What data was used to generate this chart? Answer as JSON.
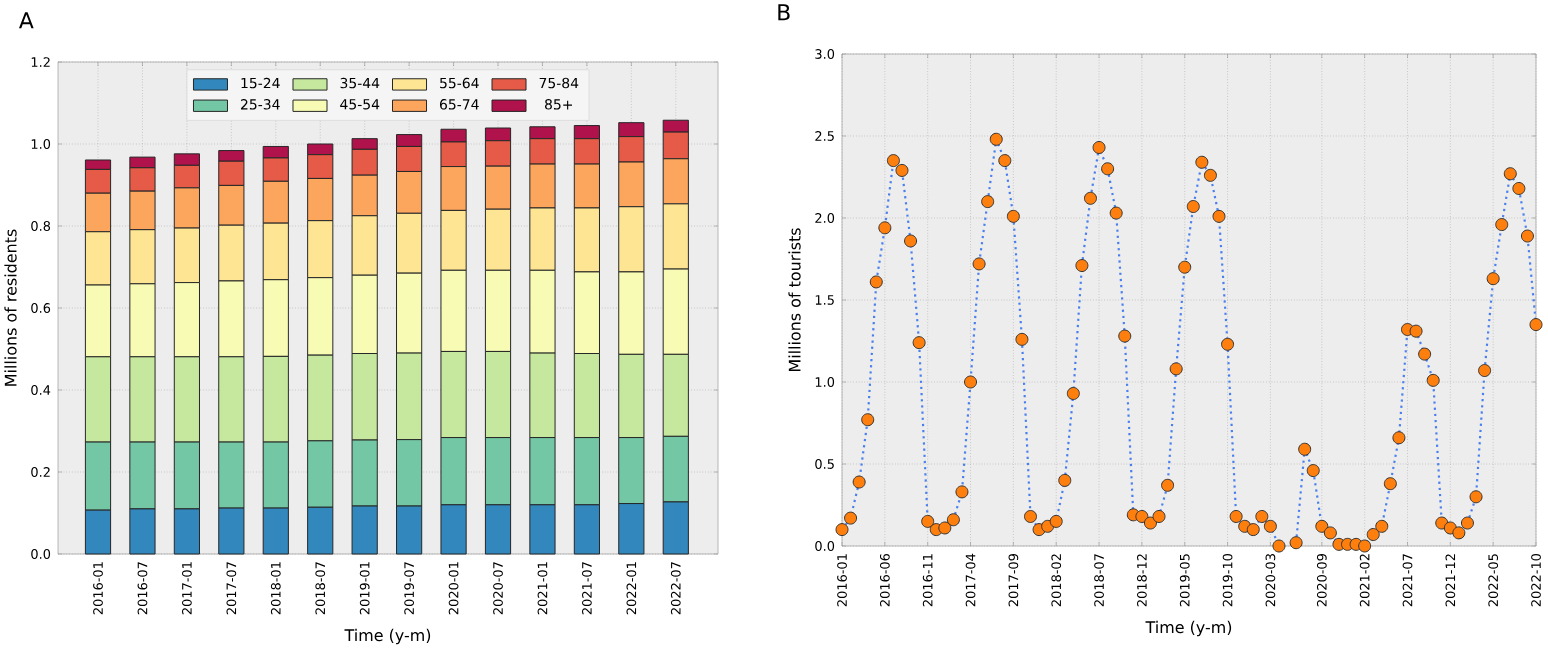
{
  "chart_data": [
    {
      "type": "bar",
      "title": "A",
      "stacked": true,
      "xlabel": "Time (y-m)",
      "ylabel": "Millions of residents",
      "categories": [
        "2016-01",
        "2016-07",
        "2017-01",
        "2017-07",
        "2018-01",
        "2018-07",
        "2019-01",
        "2019-07",
        "2020-01",
        "2020-07",
        "2021-01",
        "2021-07",
        "2022-01",
        "2022-07"
      ],
      "series": [
        {
          "name": "15-24",
          "color": "#3288bd",
          "values": [
            0.107,
            0.11,
            0.11,
            0.112,
            0.112,
            0.114,
            0.117,
            0.117,
            0.12,
            0.12,
            0.12,
            0.12,
            0.123,
            0.127
          ]
        },
        {
          "name": "25-34",
          "color": "#74c7a5",
          "values": [
            0.166,
            0.163,
            0.163,
            0.161,
            0.161,
            0.162,
            0.161,
            0.162,
            0.164,
            0.164,
            0.164,
            0.164,
            0.161,
            0.16
          ]
        },
        {
          "name": "35-44",
          "color": "#c5e89e",
          "values": [
            0.208,
            0.208,
            0.208,
            0.208,
            0.209,
            0.209,
            0.211,
            0.211,
            0.21,
            0.21,
            0.206,
            0.205,
            0.203,
            0.2
          ]
        },
        {
          "name": "45-54",
          "color": "#f7fbb3",
          "values": [
            0.175,
            0.178,
            0.181,
            0.185,
            0.187,
            0.189,
            0.191,
            0.195,
            0.198,
            0.198,
            0.202,
            0.199,
            0.201,
            0.208
          ]
        },
        {
          "name": "55-64",
          "color": "#fee593",
          "values": [
            0.13,
            0.132,
            0.133,
            0.136,
            0.138,
            0.139,
            0.145,
            0.146,
            0.146,
            0.149,
            0.152,
            0.156,
            0.159,
            0.159
          ]
        },
        {
          "name": "65-74",
          "color": "#fca55d",
          "values": [
            0.094,
            0.094,
            0.098,
            0.097,
            0.102,
            0.103,
            0.099,
            0.102,
            0.107,
            0.105,
            0.107,
            0.107,
            0.109,
            0.11
          ]
        },
        {
          "name": "75-84",
          "color": "#e65b48",
          "values": [
            0.058,
            0.057,
            0.055,
            0.059,
            0.057,
            0.058,
            0.063,
            0.061,
            0.06,
            0.062,
            0.062,
            0.062,
            0.062,
            0.065
          ]
        },
        {
          "name": "85+",
          "color": "#b0124b",
          "values": [
            0.023,
            0.026,
            0.028,
            0.026,
            0.028,
            0.026,
            0.026,
            0.029,
            0.031,
            0.031,
            0.029,
            0.032,
            0.034,
            0.029
          ]
        }
      ],
      "ylim": [
        0,
        1.2
      ],
      "yticks": [
        {
          "value": 0,
          "label": "0.0"
        },
        {
          "value": 0.2,
          "label": "0.2"
        },
        {
          "value": 0.4,
          "label": "0.4"
        },
        {
          "value": 0.6,
          "label": "0.6"
        },
        {
          "value": 0.8,
          "label": "0.8"
        },
        {
          "value": 1.0,
          "label": "1.0"
        },
        {
          "value": 1.2,
          "label": "1.2"
        }
      ],
      "grid": true,
      "legend": "top"
    },
    {
      "type": "line",
      "title": "B",
      "xlabel": "Time (y-m)",
      "ylabel": "Millions of tourists",
      "x": [
        "2016-01",
        "2016-02",
        "2016-03",
        "2016-04",
        "2016-05",
        "2016-06",
        "2016-07",
        "2016-08",
        "2016-09",
        "2016-10",
        "2016-11",
        "2016-12",
        "2017-01",
        "2017-02",
        "2017-03",
        "2017-04",
        "2017-05",
        "2017-06",
        "2017-07",
        "2017-08",
        "2017-09",
        "2017-10",
        "2017-11",
        "2017-12",
        "2018-01",
        "2018-02",
        "2018-03",
        "2018-04",
        "2018-05",
        "2018-06",
        "2018-07",
        "2018-08",
        "2018-09",
        "2018-10",
        "2018-11",
        "2018-12",
        "2019-01",
        "2019-02",
        "2019-03",
        "2019-04",
        "2019-05",
        "2019-06",
        "2019-07",
        "2019-08",
        "2019-09",
        "2019-10",
        "2019-11",
        "2019-12",
        "2020-01",
        "2020-02",
        "2020-03",
        "2020-04",
        "2020-05",
        "2020-06",
        "2020-07",
        "2020-08",
        "2020-09",
        "2020-10",
        "2020-11",
        "2020-12",
        "2021-01",
        "2021-02",
        "2021-03",
        "2021-04",
        "2021-05",
        "2021-06",
        "2021-07",
        "2021-08",
        "2021-09",
        "2021-10",
        "2021-11",
        "2021-12",
        "2022-01",
        "2022-02",
        "2022-03",
        "2022-04",
        "2022-05",
        "2022-06",
        "2022-07",
        "2022-08",
        "2022-09",
        "2022-10"
      ],
      "series": [
        {
          "color": "#ff7f0e",
          "values": [
            0.1,
            0.17,
            0.39,
            0.77,
            1.61,
            1.94,
            2.35,
            2.29,
            1.86,
            1.24,
            0.15,
            0.1,
            0.11,
            0.16,
            0.33,
            1.0,
            1.72,
            2.1,
            2.48,
            2.35,
            2.01,
            1.26,
            0.18,
            0.1,
            0.12,
            0.15,
            0.4,
            0.93,
            1.71,
            2.12,
            2.43,
            2.3,
            2.03,
            1.28,
            0.19,
            0.18,
            0.14,
            0.18,
            0.37,
            1.08,
            1.7,
            2.07,
            2.34,
            2.26,
            2.01,
            1.23,
            0.18,
            0.12,
            0.1,
            0.18,
            0.12,
            0.0,
            null,
            0.02,
            0.59,
            0.46,
            0.12,
            0.08,
            0.01,
            0.01,
            0.01,
            0.0,
            0.07,
            0.12,
            0.38,
            0.66,
            1.32,
            1.31,
            1.17,
            1.01,
            0.14,
            0.11,
            0.08,
            0.14,
            0.3,
            1.07,
            1.63,
            1.96,
            2.27,
            2.18,
            1.89,
            1.35
          ]
        }
      ],
      "xlim": [
        "2016-01",
        "2022-10"
      ],
      "xticks": [
        "2016-01",
        "2016-06",
        "2016-11",
        "2017-04",
        "2017-09",
        "2018-02",
        "2018-07",
        "2018-12",
        "2019-05",
        "2019-10",
        "2020-03",
        "2020-09",
        "2021-02",
        "2021-07",
        "2021-12",
        "2022-05",
        "2022-10"
      ],
      "ylim": [
        0,
        3.0
      ],
      "yticks": [
        {
          "value": 0,
          "label": "0.0"
        },
        {
          "value": 0.5,
          "label": "0.5"
        },
        {
          "value": 1.0,
          "label": "1.0"
        },
        {
          "value": 1.5,
          "label": "1.5"
        },
        {
          "value": 2.0,
          "label": "2.0"
        },
        {
          "value": 2.5,
          "label": "2.5"
        },
        {
          "value": 3.0,
          "label": "3.0"
        }
      ],
      "grid": true,
      "marker": "circle",
      "line_style": "dotted"
    }
  ]
}
